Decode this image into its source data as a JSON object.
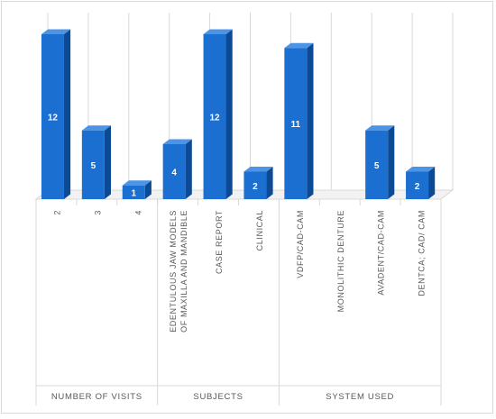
{
  "chart_data": {
    "type": "bar",
    "style": "3d-clustered-column",
    "groups": [
      {
        "name": "NUMBER OF VISITS",
        "categories": [
          "2",
          "3",
          "4"
        ],
        "values": [
          12,
          5,
          1
        ]
      },
      {
        "name": "SUBJECTS",
        "categories": [
          "EDENTULOUS JAW MODELS OF MAXILLA AND MANDIBLE",
          "CASE REPORT",
          "CLINICAL"
        ],
        "values": [
          4,
          12,
          2
        ]
      },
      {
        "name": "SYSTEM USED",
        "categories": [
          "VDFP/CAD-CAM",
          "MONOLITHIC DENTURE",
          "AVADENT/CAD-CAM",
          "DENTCA; CAD/ CAM"
        ],
        "values": [
          11,
          0,
          5,
          2
        ]
      }
    ],
    "data_labels": [
      "12",
      "5",
      "1",
      "4",
      "12",
      "2",
      "11",
      "",
      "5",
      "2"
    ],
    "ylim": [
      0,
      12
    ],
    "grid": true,
    "legend": "none",
    "colors": {
      "bar_front": "#1b6fd1",
      "bar_side": "#0d4a95",
      "bar_top": "#4d94e6",
      "grid": "#d9d9d9",
      "label_text": "#ffffff",
      "axis_text": "#595959"
    }
  }
}
